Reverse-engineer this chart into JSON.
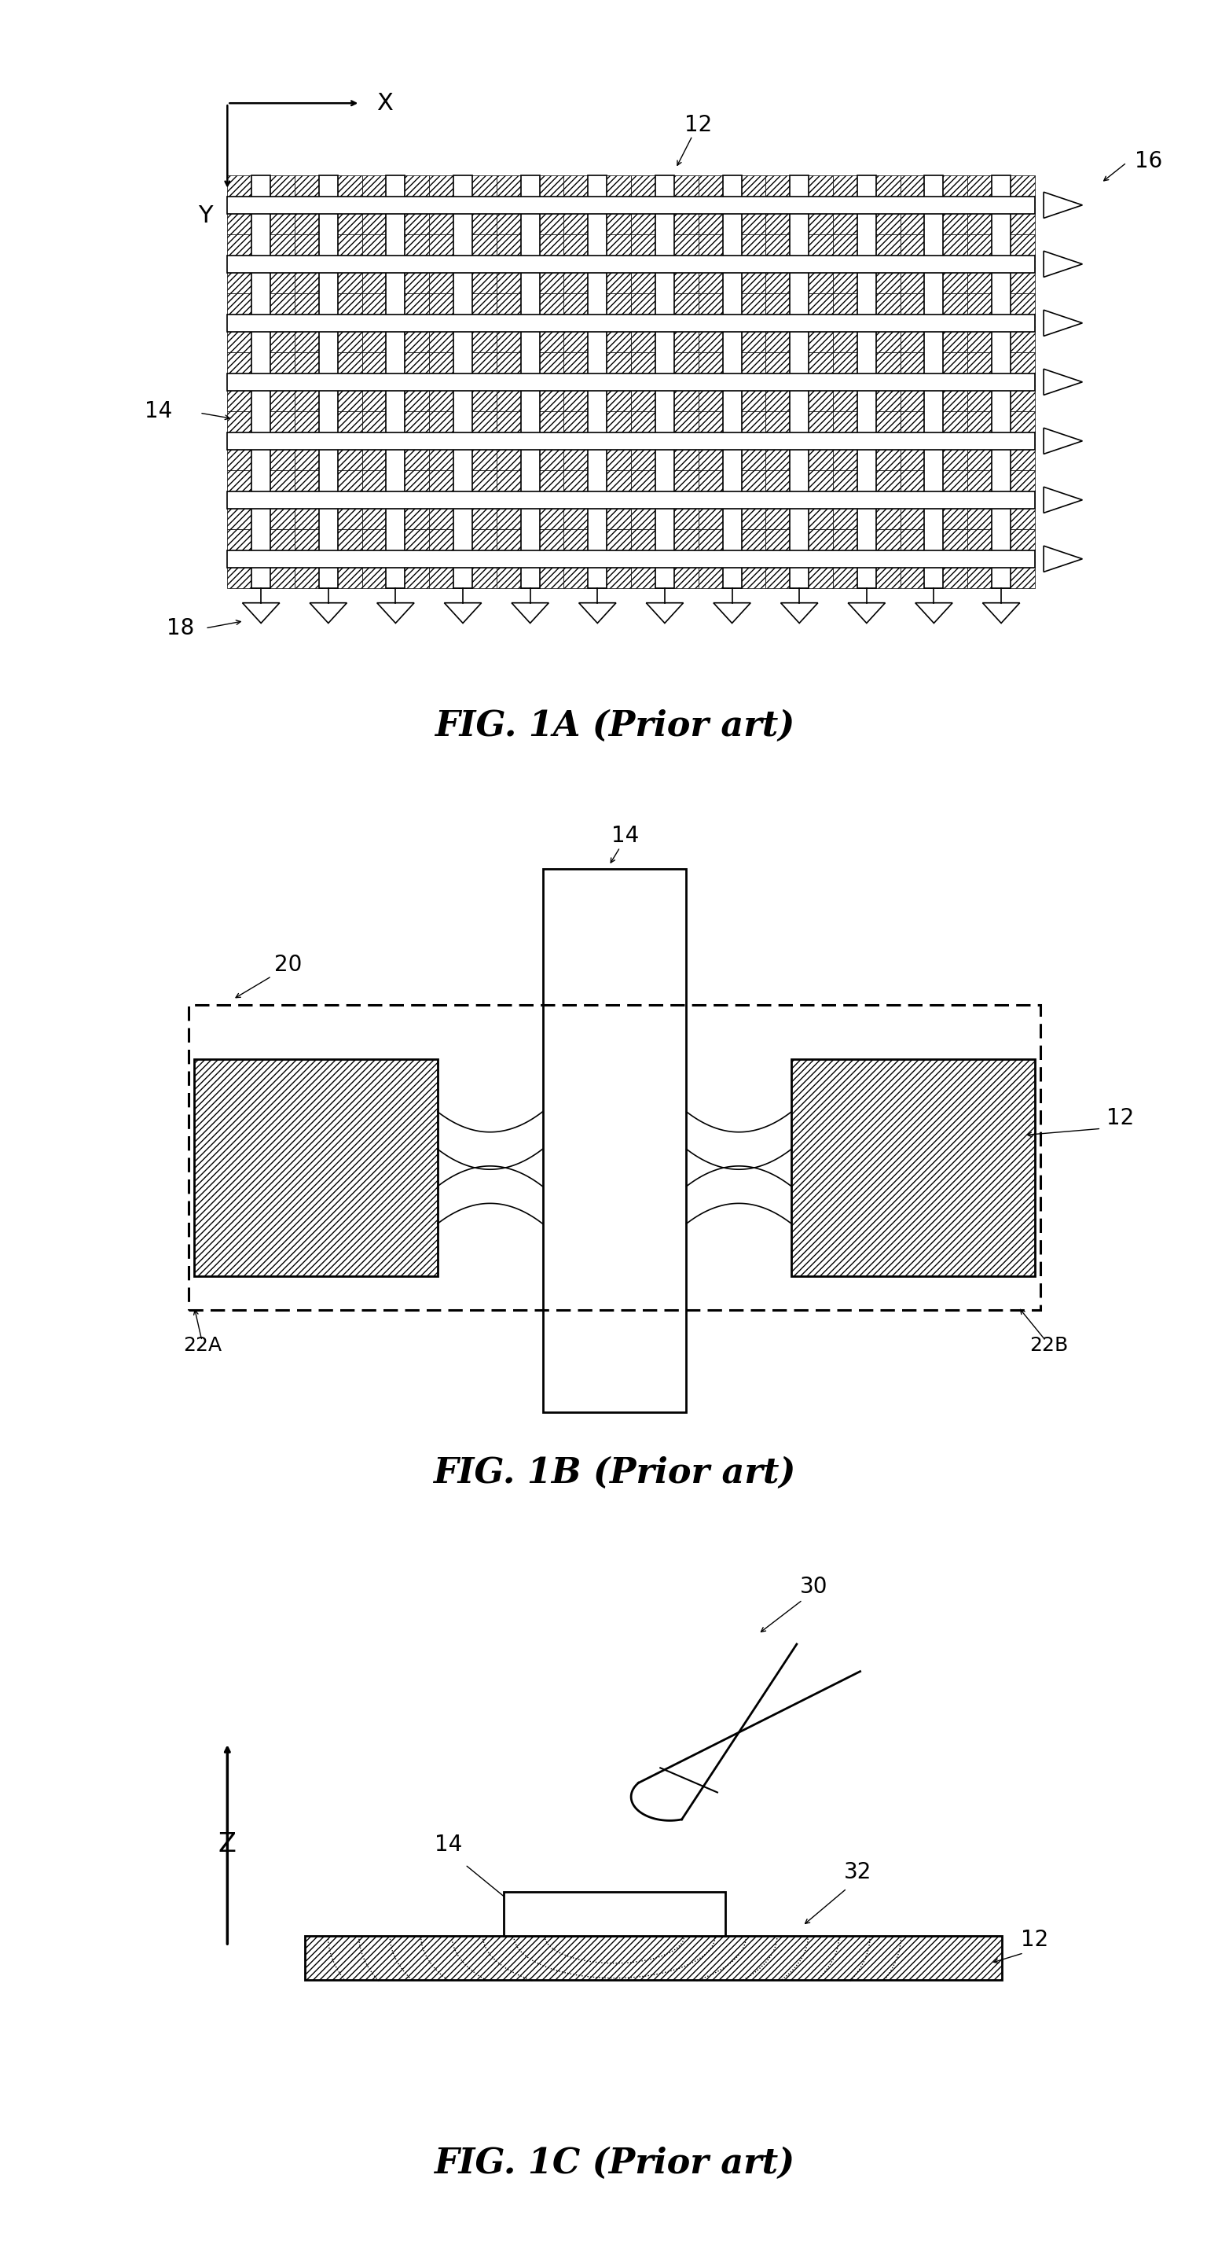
{
  "fig_width": 15.64,
  "fig_height": 28.78,
  "bg_color": "#ffffff",
  "line_color": "#000000",
  "fig1a_title": "FIG. 1A (Prior art)",
  "fig1b_title": "FIG. 1B (Prior art)",
  "fig1c_title": "FIG. 1C (Prior art)",
  "title_fontsize": 32,
  "label_fontsize": 20
}
